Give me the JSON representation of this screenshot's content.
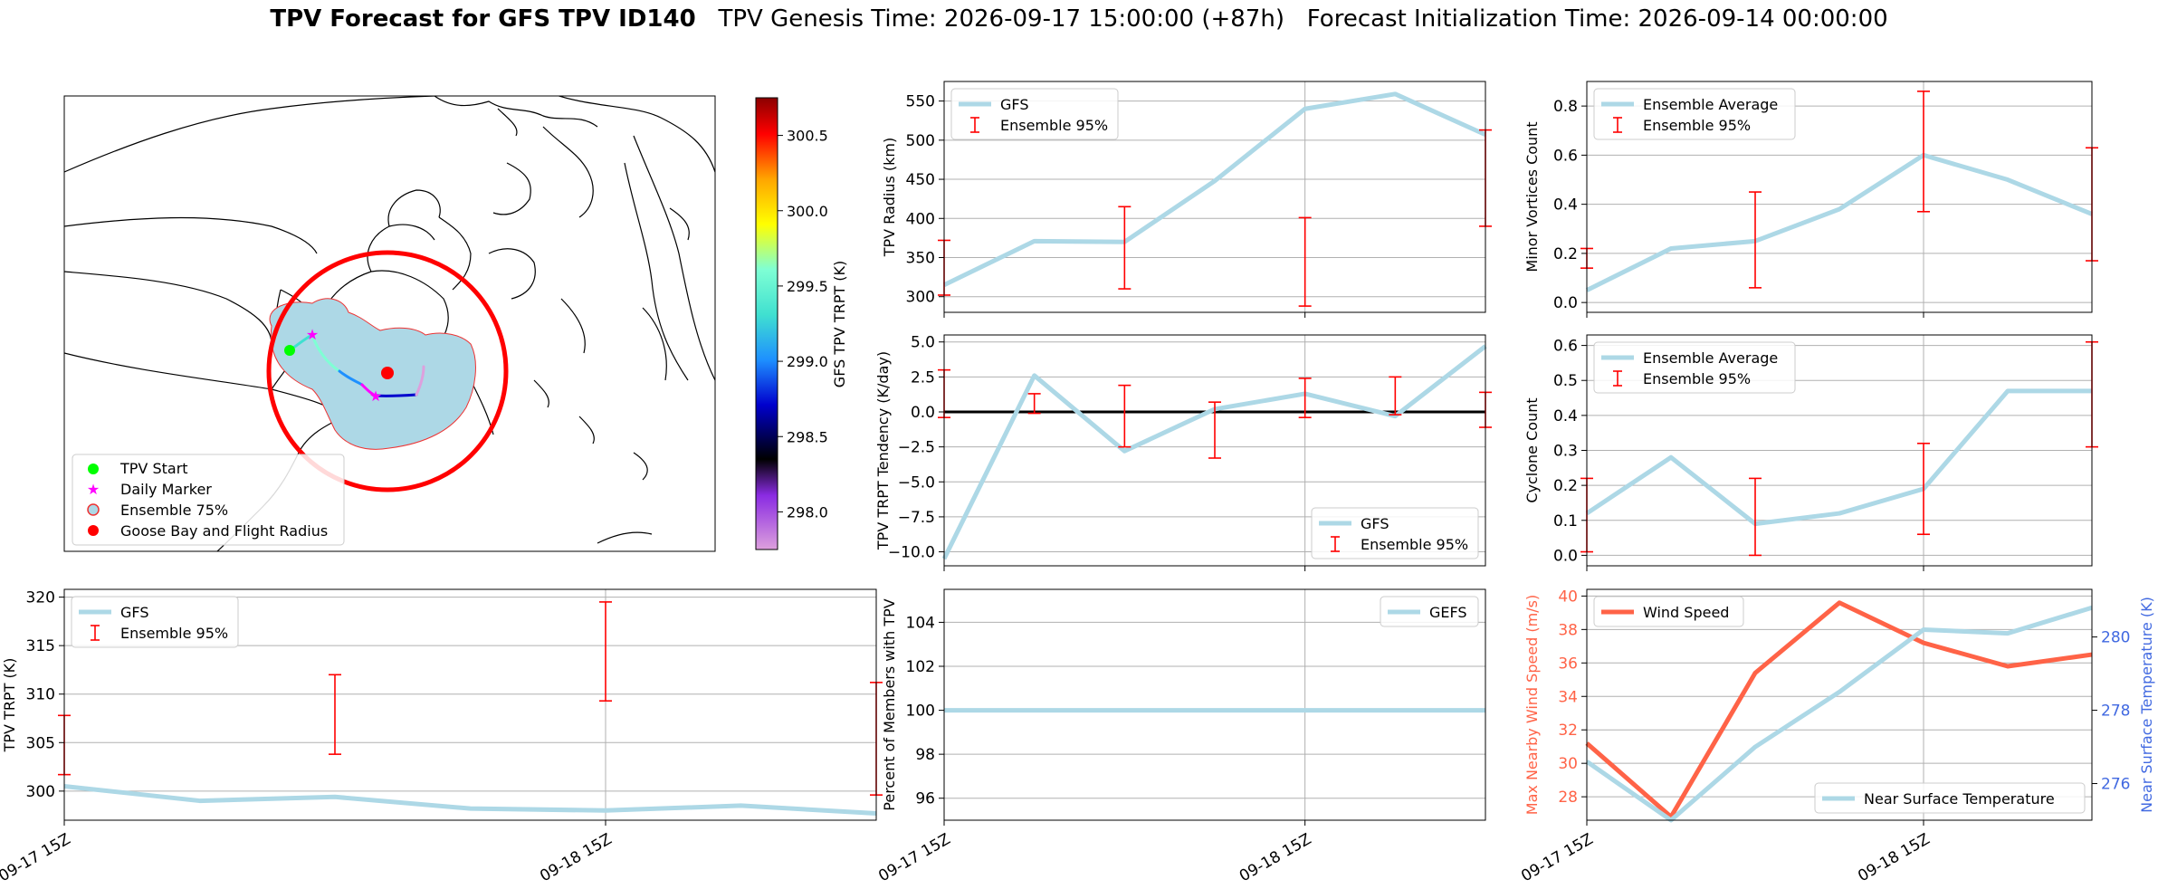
{
  "figure": {
    "title_bold": "TPV Forecast for GFS TPV ID140",
    "title_genesis": "TPV Genesis Time: 2026-09-17 15:00:00 (+87h)",
    "title_init": "Forecast Initialization Time: 2026-09-14 00:00:00"
  },
  "colors": {
    "gfs_line": "#add8e6",
    "errorbar": "#ff0000",
    "wind": "#ff6347",
    "temp_axis": "#4169e1",
    "circle": "#ff0000",
    "ensemble_fill": "#add8e6"
  },
  "map": {
    "legend": [
      "TPV Start",
      "Daily Marker",
      "Ensemble 75%",
      "Goose Bay and Flight Radius"
    ],
    "colorbar_label": "GFS TPV TRPT (K)",
    "colorbar_ticks": [
      "298.0",
      "298.5",
      "299.0",
      "299.5",
      "300.0",
      "300.5"
    ],
    "colorbar_ticks_num": [
      298.0,
      298.5,
      299.0,
      299.5,
      300.0,
      300.5
    ],
    "colorbar_range": [
      297.75,
      300.75
    ]
  },
  "chart_data": [
    {
      "id": "radius",
      "type": "line",
      "ylabel": "TPV Radius (km)",
      "x": [
        0,
        1,
        2,
        3,
        4,
        5,
        6
      ],
      "series": [
        {
          "name": "GFS",
          "values": [
            315,
            371,
            370,
            448,
            540,
            559,
            507
          ]
        }
      ],
      "errorbars": [
        {
          "x": 0,
          "low": 302,
          "high": 372
        },
        {
          "x": 2,
          "low": 310,
          "high": 415
        },
        {
          "x": 4,
          "low": 288,
          "high": 401
        },
        {
          "x": 6,
          "low": 390,
          "high": 513
        }
      ],
      "errorbar_name": "Ensemble 95%",
      "yticks": [
        "300",
        "350",
        "400",
        "450",
        "500",
        "550"
      ],
      "yticks_num": [
        300,
        350,
        400,
        450,
        500,
        550
      ],
      "ylim": [
        280,
        575
      ],
      "legend": "top-left"
    },
    {
      "id": "minor",
      "type": "line",
      "ylabel": "Minor Vortices Count",
      "x": [
        0,
        1,
        2,
        3,
        4,
        5,
        6
      ],
      "series": [
        {
          "name": "Ensemble Average",
          "values": [
            0.05,
            0.22,
            0.25,
            0.38,
            0.6,
            0.5,
            0.36
          ]
        }
      ],
      "errorbars": [
        {
          "x": 0,
          "low": 0.14,
          "high": 0.22
        },
        {
          "x": 2,
          "low": 0.06,
          "high": 0.45
        },
        {
          "x": 4,
          "low": 0.37,
          "high": 0.86
        },
        {
          "x": 6,
          "low": 0.17,
          "high": 0.63
        }
      ],
      "errorbar_name": "Ensemble 95%",
      "yticks": [
        "0.0",
        "0.2",
        "0.4",
        "0.6",
        "0.8"
      ],
      "yticks_num": [
        0.0,
        0.2,
        0.4,
        0.6,
        0.8
      ],
      "ylim": [
        -0.04,
        0.9
      ],
      "legend": "top-left"
    },
    {
      "id": "tendency",
      "type": "line",
      "ylabel": "TPV TRPT Tendency (K/day)",
      "x": [
        0,
        1,
        2,
        3,
        4,
        5,
        6
      ],
      "series": [
        {
          "name": "GFS",
          "values": [
            -10.5,
            2.6,
            -2.8,
            0.2,
            1.3,
            -0.3,
            4.7
          ]
        }
      ],
      "zero_line": true,
      "errorbars": [
        {
          "x": 0,
          "low": -0.4,
          "high": 3.0
        },
        {
          "x": 1,
          "low": -0.1,
          "high": 1.3
        },
        {
          "x": 2,
          "low": -2.5,
          "high": 1.9
        },
        {
          "x": 3,
          "low": -3.3,
          "high": 0.7
        },
        {
          "x": 4,
          "low": -0.4,
          "high": 2.4
        },
        {
          "x": 5,
          "low": -0.2,
          "high": 2.5
        },
        {
          "x": 6,
          "low": -1.1,
          "high": 1.4
        }
      ],
      "errorbar_name": "Ensemble 95%",
      "yticks": [
        "−10.0",
        "−7.5",
        "−5.0",
        "−2.5",
        "0.0",
        "2.5",
        "5.0"
      ],
      "yticks_num": [
        -10.0,
        -7.5,
        -5.0,
        -2.5,
        0.0,
        2.5,
        5.0
      ],
      "ylim": [
        -11.0,
        5.5
      ],
      "legend": "bottom-right"
    },
    {
      "id": "cyclone",
      "type": "line",
      "ylabel": "Cyclone Count",
      "x": [
        0,
        1,
        2,
        3,
        4,
        5,
        6
      ],
      "series": [
        {
          "name": "Ensemble Average",
          "values": [
            0.12,
            0.28,
            0.09,
            0.12,
            0.19,
            0.47,
            0.47
          ]
        }
      ],
      "errorbars": [
        {
          "x": 0,
          "low": 0.01,
          "high": 0.22
        },
        {
          "x": 2,
          "low": 0.0,
          "high": 0.22
        },
        {
          "x": 4,
          "low": 0.06,
          "high": 0.32
        },
        {
          "x": 6,
          "low": 0.31,
          "high": 0.61
        }
      ],
      "errorbar_name": "Ensemble 95%",
      "yticks": [
        "0.0",
        "0.1",
        "0.2",
        "0.3",
        "0.4",
        "0.5",
        "0.6"
      ],
      "yticks_num": [
        0.0,
        0.1,
        0.2,
        0.3,
        0.4,
        0.5,
        0.6
      ],
      "ylim": [
        -0.03,
        0.63
      ],
      "legend": "top-left"
    },
    {
      "id": "trpt",
      "type": "line",
      "ylabel": "TPV TRPT (K)",
      "x": [
        0,
        1,
        2,
        3,
        4,
        5,
        6
      ],
      "series": [
        {
          "name": "GFS",
          "values": [
            300.5,
            299.0,
            299.4,
            298.2,
            298.0,
            298.5,
            297.7
          ]
        }
      ],
      "errorbars": [
        {
          "x": 0,
          "low": 301.7,
          "high": 307.8
        },
        {
          "x": 2,
          "low": 303.8,
          "high": 312.0
        },
        {
          "x": 4,
          "low": 309.3,
          "high": 319.5
        },
        {
          "x": 6,
          "low": 299.6,
          "high": 311.2
        }
      ],
      "errorbar_name": "Ensemble 95%",
      "yticks": [
        "300",
        "305",
        "310",
        "315",
        "320"
      ],
      "yticks_num": [
        300,
        305,
        310,
        315,
        320
      ],
      "ylim": [
        297.0,
        320.8
      ],
      "xticks": [
        "09-17 15Z",
        "09-18 15Z"
      ],
      "legend": "top-left"
    },
    {
      "id": "percent",
      "type": "line",
      "ylabel": "Percent of Members with TPV",
      "x": [
        0,
        1,
        2,
        3,
        4,
        5,
        6
      ],
      "series": [
        {
          "name": "GEFS",
          "values": [
            100,
            100,
            100,
            100,
            100,
            100,
            100
          ]
        }
      ],
      "yticks": [
        "96",
        "98",
        "100",
        "102",
        "104"
      ],
      "yticks_num": [
        96,
        98,
        100,
        102,
        104
      ],
      "ylim": [
        95.0,
        105.5
      ],
      "xticks": [
        "09-17 15Z",
        "09-18 15Z"
      ],
      "legend": "top-right"
    },
    {
      "id": "wind",
      "type": "line",
      "ylabel": "Max Nearby Wind Speed (m/s)",
      "ylabel_right": "Near Surface Temperature (K)",
      "x": [
        0,
        1,
        2,
        3,
        4,
        5,
        6
      ],
      "series": [
        {
          "name": "Wind Speed",
          "values": [
            31.2,
            26.8,
            35.4,
            39.6,
            37.2,
            35.8,
            36.5
          ],
          "axis": "left"
        },
        {
          "name": "Near Surface Temperature",
          "values": [
            276.6,
            275.0,
            277.0,
            278.5,
            280.2,
            280.1,
            280.8
          ],
          "axis": "right"
        }
      ],
      "yticks": [
        "28",
        "30",
        "32",
        "34",
        "36",
        "38",
        "40"
      ],
      "yticks_num": [
        28,
        30,
        32,
        34,
        36,
        38,
        40
      ],
      "ylim": [
        26.6,
        40.4
      ],
      "yticks_right": [
        "276",
        "278",
        "280"
      ],
      "yticks_right_num": [
        276,
        278,
        280
      ],
      "ylim_right": [
        275.0,
        281.3
      ],
      "xticks": [
        "09-17 15Z",
        "09-18 15Z"
      ],
      "legend": "top-left and bottom-right"
    }
  ]
}
